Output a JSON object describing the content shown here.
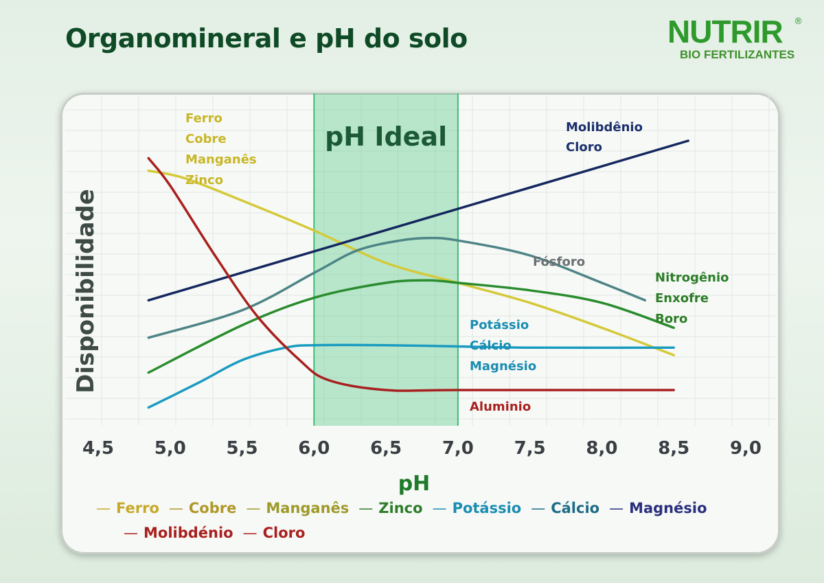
{
  "header": {
    "title": "Organomineral e pH do solo",
    "logo_main": "NUTRIR",
    "logo_reg": "®",
    "logo_sub": "BIO FERTILIZANTES"
  },
  "chart_data": {
    "type": "line",
    "title": "Organomineral e pH do solo",
    "xlabel": "pH",
    "ylabel": "Disponibilidade",
    "xlim": [
      4.5,
      9.0
    ],
    "ylim": [
      0,
      100
    ],
    "x_ticks": [
      "4,5",
      "5,0",
      "5,5",
      "6,0",
      "6,5",
      "7,0",
      "7,5",
      "8,0",
      "8,5",
      "9,0"
    ],
    "ideal_band": {
      "label": "pH Ideal",
      "from": 6.0,
      "to": 7.0,
      "color": "#43c47a"
    },
    "series": [
      {
        "name": "Ferro Cobre Manganês Zinco",
        "labels": [
          "Ferro",
          "Cobre",
          "Manganês",
          "Zinco"
        ],
        "color": "#d4c93a",
        "points": [
          [
            4.85,
            88
          ],
          [
            5.1,
            85
          ],
          [
            5.5,
            76
          ],
          [
            6.0,
            64
          ],
          [
            6.5,
            51
          ],
          [
            7.0,
            43
          ],
          [
            7.5,
            35
          ],
          [
            8.0,
            25
          ],
          [
            8.5,
            14
          ]
        ]
      },
      {
        "name": "Molibdênio Cloro",
        "labels": [
          "Molibdênio",
          "Cloro"
        ],
        "color": "#14275e",
        "points": [
          [
            4.85,
            36
          ],
          [
            8.6,
            100
          ]
        ]
      },
      {
        "name": "Fósforo",
        "labels": [
          "Fósforo"
        ],
        "color": "#4d8486",
        "points": [
          [
            4.85,
            21
          ],
          [
            5.5,
            32
          ],
          [
            6.0,
            47
          ],
          [
            6.3,
            56
          ],
          [
            6.6,
            60
          ],
          [
            6.8,
            61
          ],
          [
            7.0,
            60
          ],
          [
            7.5,
            54
          ],
          [
            8.0,
            43
          ],
          [
            8.3,
            36
          ]
        ]
      },
      {
        "name": "Nitrogênio Enxofre Boro",
        "labels": [
          "Nitrogênio",
          "Enxofre",
          "Boro"
        ],
        "color": "#2a8c2e",
        "points": [
          [
            4.85,
            7
          ],
          [
            5.5,
            26
          ],
          [
            6.0,
            37
          ],
          [
            6.5,
            43
          ],
          [
            6.8,
            44
          ],
          [
            7.0,
            43
          ],
          [
            7.5,
            40
          ],
          [
            8.0,
            35
          ],
          [
            8.5,
            25
          ]
        ]
      },
      {
        "name": "Potássio Cálcio Magnésio",
        "labels": [
          "Potássio",
          "Cálcio",
          "Magnésio"
        ],
        "color": "#1a9bc0",
        "points": [
          [
            4.85,
            -7
          ],
          [
            5.2,
            3
          ],
          [
            5.5,
            12
          ],
          [
            5.8,
            17
          ],
          [
            6.0,
            18
          ],
          [
            6.5,
            18
          ],
          [
            7.0,
            17.5
          ],
          [
            7.5,
            17
          ],
          [
            8.5,
            17
          ]
        ]
      },
      {
        "name": "Aluminio",
        "labels": [
          "Aluminio"
        ],
        "color": "#a8201f",
        "points": [
          [
            4.85,
            93
          ],
          [
            5.0,
            82
          ],
          [
            5.3,
            55
          ],
          [
            5.6,
            30
          ],
          [
            5.9,
            12
          ],
          [
            6.1,
            4
          ],
          [
            6.5,
            0
          ],
          [
            7.0,
            0
          ],
          [
            8.5,
            0
          ]
        ]
      }
    ],
    "annotations": [
      {
        "lines": [
          "Ferro",
          "Cobre",
          "Manganês",
          "Zinco"
        ],
        "color": "#c8b628"
      },
      {
        "lines": [
          "Molibdênio",
          "Cloro"
        ],
        "color": "#1c2f6b"
      },
      {
        "lines": [
          "Fósforo"
        ],
        "color": "#6a7073"
      },
      {
        "lines": [
          "Nitrogênio",
          "Enxofre",
          "Boro"
        ],
        "color": "#2c7d28"
      },
      {
        "lines": [
          "Potássio",
          "Cálcio",
          "Magnésio"
        ],
        "color": "#1a8db2"
      },
      {
        "lines": [
          "Aluminio"
        ],
        "color": "#a8201f"
      }
    ]
  },
  "legend": [
    {
      "label": "Ferro",
      "color": "#c7a92a"
    },
    {
      "label": "Cobre",
      "color": "#b0972a"
    },
    {
      "label": "Manganês",
      "color": "#9f9a2a"
    },
    {
      "label": "Zinco",
      "color": "#2e7d2a"
    },
    {
      "label": "Potássio",
      "color": "#1a8db2"
    },
    {
      "label": "Cálcio",
      "color": "#1d6b86"
    },
    {
      "label": "Magnésio",
      "color": "#2a2f7e"
    },
    {
      "label": "Molibdénio",
      "color": "#a8201f"
    },
    {
      "label": "Cloro",
      "color": "#a8201f"
    }
  ]
}
